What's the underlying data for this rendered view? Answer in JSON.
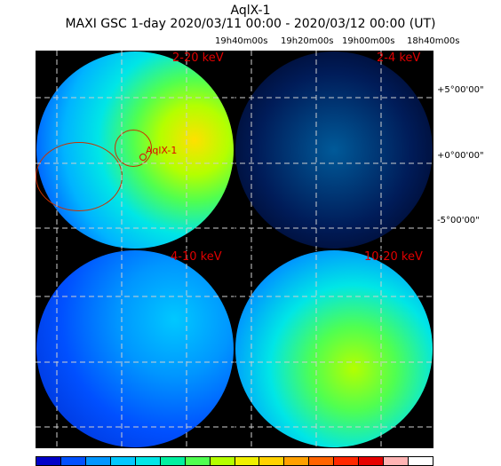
{
  "header": {
    "source": "AqlX-1",
    "observation": "MAXI GSC 1-day 2020/03/11 00:00 - 2020/03/12 00:00 (UT)"
  },
  "axes": {
    "ra_ticks": [
      "19h40m00s",
      "19h20m00s",
      "19h00m00s",
      "18h40m00s"
    ],
    "dec_ticks": [
      "+5°00'00\"",
      "+0°00'00\"",
      "-5°00'00\""
    ]
  },
  "panels": [
    {
      "band": "2-20 keV",
      "source_label": "AqlX-1"
    },
    {
      "band": "2-4 keV"
    },
    {
      "band": "4-10 keV"
    },
    {
      "band": "10-20 keV"
    }
  ],
  "colorbar": {
    "colors": [
      "#0000c8",
      "#0050ff",
      "#0096ff",
      "#00c8ff",
      "#00e6e6",
      "#00f0a0",
      "#50ff50",
      "#b4ff00",
      "#f0f000",
      "#ffd200",
      "#ffa000",
      "#ff6400",
      "#ff2800",
      "#e60000",
      "#ffb4b4",
      "#ffffff"
    ]
  }
}
